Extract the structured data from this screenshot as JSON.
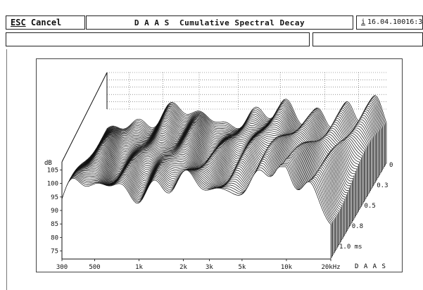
{
  "header": {
    "esc_key": "ESC",
    "cancel_label": "Cancel",
    "title": "D A A S  Cumulative Spectral Decay",
    "info_key": "i",
    "datetime": "16.04.10016:30"
  },
  "status": {
    "message_left": "",
    "message_right": ""
  },
  "chart_data": {
    "type": "waterfall",
    "xlabel": "",
    "x_ticks": [
      "300",
      "500",
      "1k",
      "2k",
      "3k",
      "5k",
      "10k",
      "20kHz"
    ],
    "y_unit": "dB",
    "y_ticks": [
      "105",
      "100",
      "95",
      "90",
      "85",
      "80",
      "75"
    ],
    "ylim": [
      72,
      108
    ],
    "z_ticks": [
      "0",
      "0.3",
      "0.5",
      "0.8",
      "1.0 ms"
    ],
    "z_unit": "ms",
    "brand": "D A A S",
    "grid": true
  },
  "colors": {
    "lines": "#111111",
    "grid": "#555555",
    "background": "#ffffff"
  }
}
